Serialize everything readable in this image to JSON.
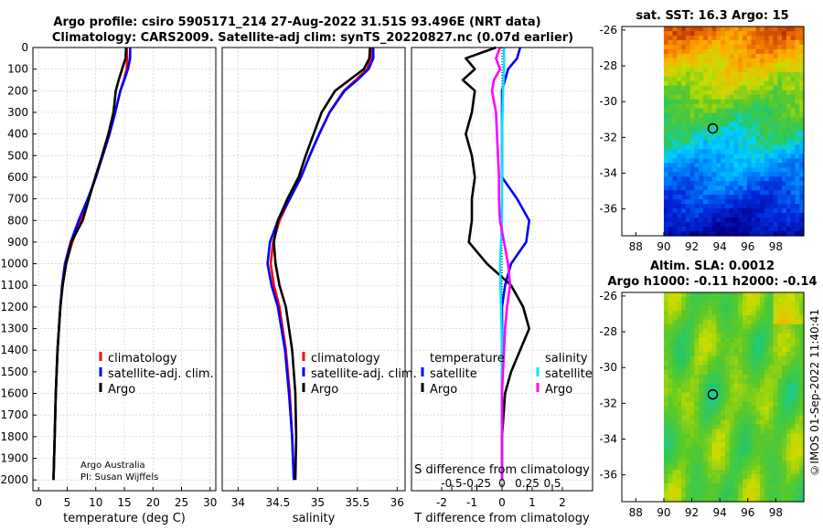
{
  "titles": {
    "line1": "Argo profile: csiro 5905171_214 27-Aug-2022 31.51S 93.496E (NRT data)",
    "line2": "Climatology: CARS2009. Satellite-adj clim: synTS_20220827.nc (0.07d earlier)"
  },
  "credit": "©IMOS 01-Sep-2022 11:40:41",
  "colors": {
    "climatology": "#ff0000",
    "satellite": "#0000ff",
    "argo": "#000000",
    "s_satellite": "#00e5ff",
    "s_argo": "#ff00ff",
    "grid": "#c8c8c8"
  },
  "chart_data": [
    {
      "type": "line",
      "name": "temperature",
      "xlabel": "temperature (deg C)",
      "ylabel": "",
      "xlim": [
        -1,
        31
      ],
      "ylim": [
        2050,
        0
      ],
      "y_inverted": true,
      "xticks": [
        "0",
        "5",
        "10",
        "15",
        "20",
        "25",
        "30"
      ],
      "yticks": [
        "0",
        "100",
        "200",
        "300",
        "400",
        "500",
        "600",
        "700",
        "800",
        "900",
        "1000",
        "1100",
        "1200",
        "1300",
        "1400",
        "1500",
        "1600",
        "1700",
        "1800",
        "1900",
        "2000"
      ],
      "legend": [
        "climatology",
        "satellite-adj. clim.",
        "Argo"
      ],
      "note1": "Argo Australia",
      "note2": "PI: Susan Wijffels",
      "series": [
        {
          "name": "climatology",
          "depth": [
            0,
            50,
            100,
            150,
            200,
            300,
            400,
            500,
            600,
            700,
            800,
            900,
            1000,
            1100,
            1200,
            1400,
            1600,
            1800,
            2000
          ],
          "values": [
            15.4,
            15.5,
            15.4,
            14.9,
            14.3,
            13.4,
            12.4,
            11.2,
            10.0,
            8.7,
            7.3,
            5.9,
            4.8,
            4.2,
            3.8,
            3.3,
            3.0,
            2.8,
            2.6
          ]
        },
        {
          "name": "satellite-adj. clim.",
          "depth": [
            0,
            50,
            100,
            150,
            200,
            300,
            400,
            500,
            600,
            700,
            800,
            900,
            1000,
            1100,
            1200,
            1400,
            1600,
            1800,
            2000
          ],
          "values": [
            16.0,
            16.0,
            15.6,
            15.0,
            14.3,
            13.4,
            12.4,
            11.2,
            10.0,
            8.6,
            7.0,
            5.6,
            4.6,
            4.1,
            3.8,
            3.3,
            3.0,
            2.8,
            2.6
          ]
        },
        {
          "name": "Argo",
          "depth": [
            0,
            50,
            100,
            150,
            200,
            300,
            400,
            500,
            600,
            700,
            800,
            900,
            1000,
            1100,
            1200,
            1400,
            1600,
            1800,
            2000
          ],
          "values": [
            15.3,
            15.2,
            14.6,
            14.0,
            13.5,
            13.1,
            12.2,
            11.1,
            9.9,
            8.8,
            7.7,
            5.7,
            4.8,
            4.2,
            3.8,
            3.3,
            3.0,
            2.8,
            2.6
          ]
        }
      ]
    },
    {
      "type": "line",
      "name": "salinity",
      "xlabel": "salinity",
      "ylabel": "",
      "xlim": [
        33.8,
        36.1
      ],
      "ylim": [
        2050,
        0
      ],
      "y_inverted": true,
      "xticks": [
        "34",
        "34.5",
        "35",
        "35.5",
        "36"
      ],
      "legend": [
        "climatology",
        "satellite-adj. clim.",
        "Argo"
      ],
      "series": [
        {
          "name": "climatology",
          "depth": [
            0,
            50,
            100,
            150,
            200,
            300,
            400,
            500,
            600,
            700,
            800,
            900,
            1000,
            1100,
            1200,
            1400,
            1600,
            1800,
            2000
          ],
          "values": [
            35.67,
            35.67,
            35.62,
            35.48,
            35.33,
            35.15,
            35.02,
            34.9,
            34.79,
            34.65,
            34.52,
            34.44,
            34.41,
            34.45,
            34.52,
            34.6,
            34.65,
            34.68,
            34.7
          ]
        },
        {
          "name": "satellite-adj. clim.",
          "depth": [
            0,
            50,
            100,
            150,
            200,
            300,
            400,
            500,
            600,
            700,
            800,
            900,
            1000,
            1100,
            1200,
            1400,
            1600,
            1800,
            2000
          ],
          "values": [
            35.7,
            35.7,
            35.64,
            35.5,
            35.34,
            35.15,
            35.02,
            34.9,
            34.79,
            34.65,
            34.5,
            34.4,
            34.37,
            34.42,
            34.5,
            34.59,
            34.64,
            34.68,
            34.7
          ]
        },
        {
          "name": "Argo",
          "depth": [
            0,
            50,
            100,
            150,
            200,
            300,
            400,
            500,
            600,
            700,
            800,
            900,
            1000,
            1100,
            1200,
            1400,
            1600,
            1800,
            2000
          ],
          "values": [
            35.66,
            35.65,
            35.58,
            35.4,
            35.22,
            35.05,
            34.95,
            34.85,
            34.76,
            34.62,
            34.5,
            34.45,
            34.47,
            34.52,
            34.6,
            34.68,
            34.72,
            34.73,
            34.72
          ]
        }
      ]
    },
    {
      "type": "line",
      "name": "difference",
      "xlabel": "T difference from climatology",
      "xlabel2": "S difference from climatology",
      "xlim": [
        -3,
        3
      ],
      "xlim2": [
        -0.9,
        0.9
      ],
      "ylim": [
        2050,
        0
      ],
      "y_inverted": true,
      "xticks": [
        "-2",
        "-1",
        "0",
        "1",
        "2"
      ],
      "xticks2": [
        "-0.5",
        "-0.25",
        "0",
        "0.25",
        "0.5"
      ],
      "legend_header_t": "temperature",
      "legend_header_s": "salinity",
      "legend_t": [
        "satellite",
        "Argo"
      ],
      "legend_s": [
        "satellite",
        "Argo"
      ],
      "series": [
        {
          "name": "T satellite",
          "depth": [
            0,
            50,
            100,
            200,
            300,
            400,
            500,
            600,
            700,
            800,
            900,
            1000,
            1100,
            1200,
            1400,
            1600,
            1800,
            2000
          ],
          "values": [
            0.6,
            0.5,
            0.2,
            0.0,
            0.0,
            0.0,
            0.0,
            0.0,
            0.5,
            0.9,
            0.8,
            0.3,
            0.1,
            0.0,
            0.0,
            0.0,
            0.0,
            0.0
          ]
        },
        {
          "name": "T Argo",
          "depth": [
            0,
            50,
            100,
            150,
            200,
            300,
            400,
            500,
            600,
            700,
            800,
            900,
            1000,
            1100,
            1200,
            1300,
            1400,
            1500,
            1600,
            1800,
            2000
          ],
          "values": [
            -0.2,
            -1.2,
            -0.9,
            -1.3,
            -0.9,
            -1.0,
            -1.2,
            -1.0,
            -0.9,
            -1.0,
            -1.0,
            -1.1,
            -0.5,
            0.3,
            0.7,
            0.9,
            0.6,
            0.3,
            0.1,
            0.0,
            0.0
          ]
        },
        {
          "name": "S satellite",
          "depth": [
            0,
            100,
            200,
            400,
            600,
            800,
            1000,
            1200,
            1400,
            1600,
            1800,
            2000
          ],
          "values": [
            0.02,
            0.02,
            0.01,
            0.0,
            0.0,
            0.0,
            -0.02,
            -0.01,
            0.0,
            0.0,
            0.0,
            0.0
          ]
        },
        {
          "name": "S Argo",
          "depth": [
            0,
            50,
            100,
            150,
            200,
            300,
            400,
            500,
            600,
            700,
            800,
            900,
            1000,
            1100,
            1200,
            1300,
            1400,
            1500,
            1600,
            1800,
            2000
          ],
          "values": [
            -0.02,
            -0.06,
            -0.02,
            -0.08,
            -0.1,
            -0.06,
            -0.05,
            -0.04,
            -0.03,
            -0.03,
            -0.02,
            0.02,
            0.06,
            0.08,
            0.05,
            0.03,
            0.02,
            0.01,
            0.0,
            0.0,
            0.0
          ]
        }
      ]
    },
    {
      "type": "heatmap",
      "name": "sst_map",
      "title": "sat. SST: 16.3 Argo: 15",
      "xlim": [
        87,
        100
      ],
      "ylim": [
        -37.5,
        -25.8
      ],
      "xticks": [
        "88",
        "90",
        "92",
        "94",
        "96",
        "98"
      ],
      "yticks": [
        "-26",
        "-28",
        "-30",
        "-32",
        "-34",
        "-36"
      ],
      "float_lon": 93.5,
      "float_lat": -31.5
    },
    {
      "type": "heatmap",
      "name": "sla_map",
      "title1": "Altim. SLA: 0.0012",
      "title2": "Argo h1000: -0.11 h2000: -0.14",
      "xlim": [
        87,
        100
      ],
      "ylim": [
        -37.5,
        -25.8
      ],
      "xticks": [
        "88",
        "90",
        "92",
        "94",
        "96",
        "98"
      ],
      "yticks": [
        "-26",
        "-28",
        "-30",
        "-32",
        "-34",
        "-36"
      ],
      "float_lon": 93.5,
      "float_lat": -31.5
    }
  ]
}
